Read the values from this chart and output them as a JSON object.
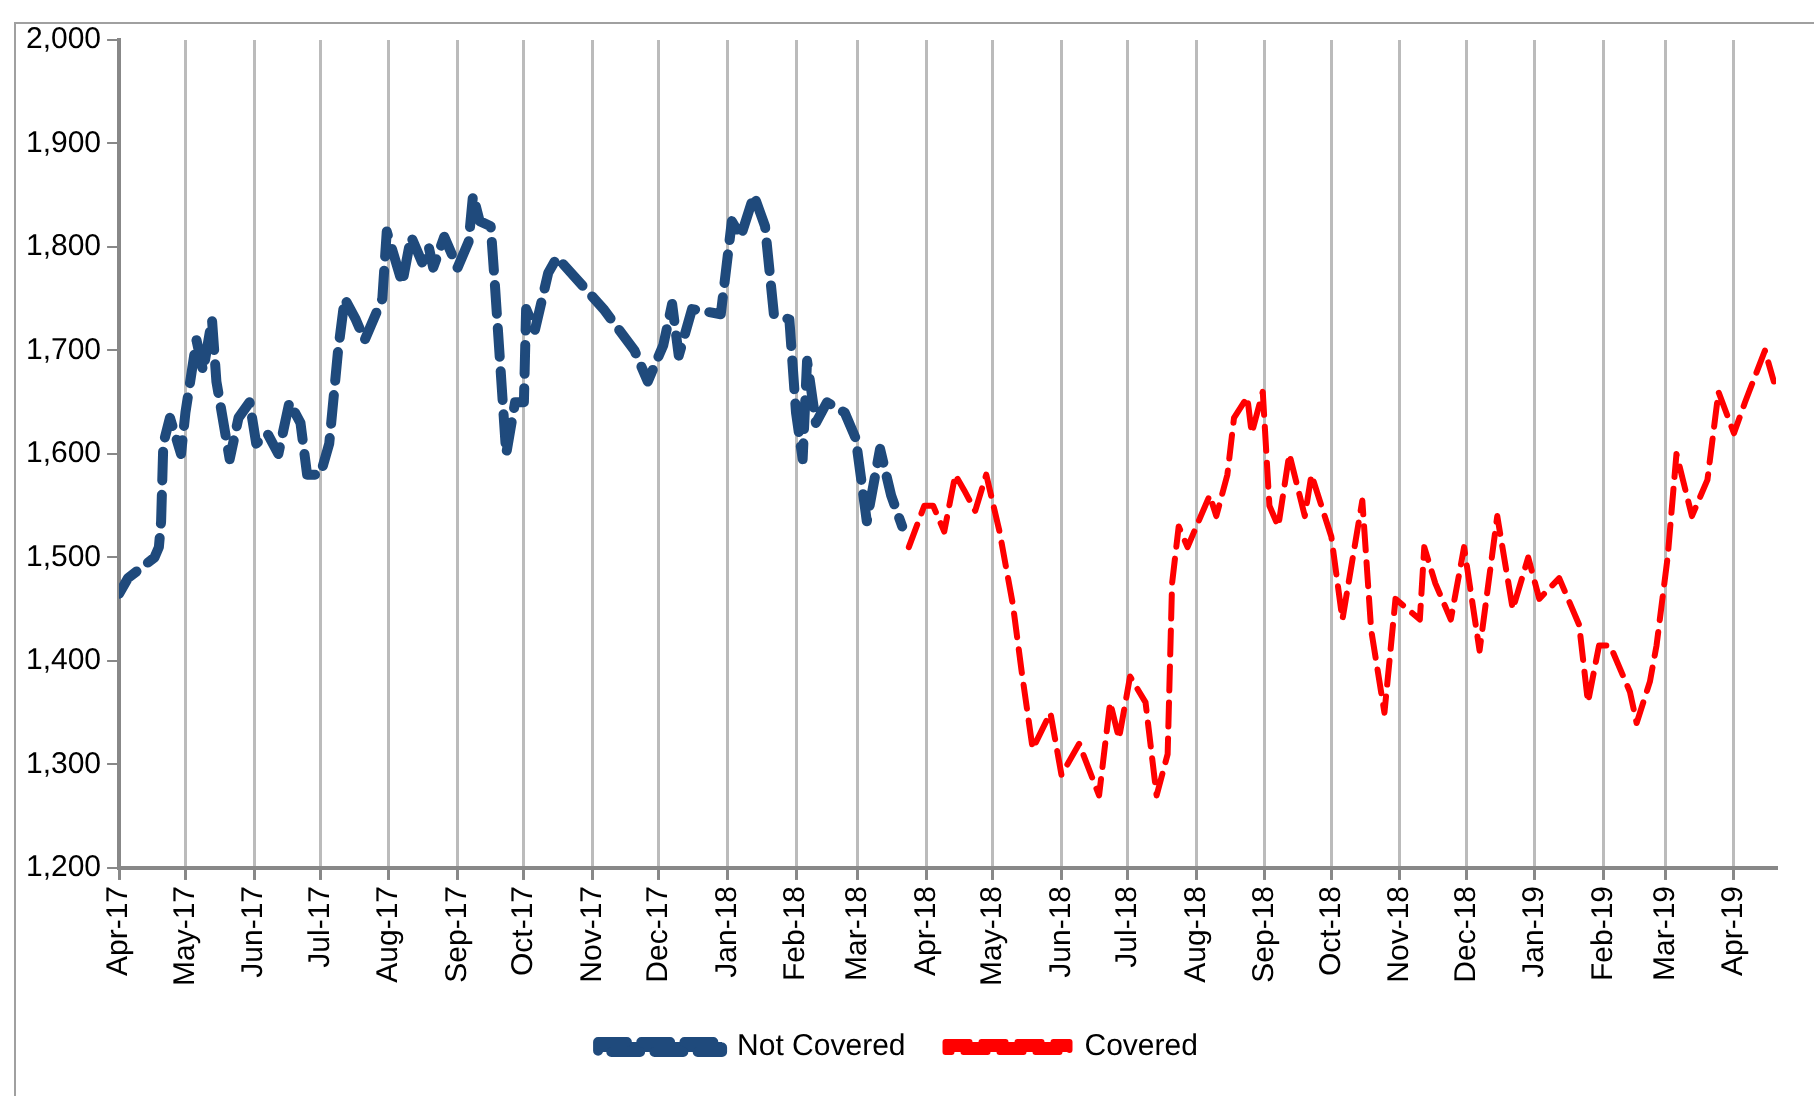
{
  "chart_data": {
    "type": "line",
    "xlim": [
      "2017-04-01",
      "2019-04-20"
    ],
    "xticks": [
      {
        "value": "2017-04-01",
        "label": "Apr-17"
      },
      {
        "value": "2017-05-01",
        "label": "May-17"
      },
      {
        "value": "2017-06-01",
        "label": "Jun-17"
      },
      {
        "value": "2017-07-01",
        "label": "Jul-17"
      },
      {
        "value": "2017-08-01",
        "label": "Aug-17"
      },
      {
        "value": "2017-09-01",
        "label": "Sep-17"
      },
      {
        "value": "2017-10-01",
        "label": "Oct-17"
      },
      {
        "value": "2017-11-01",
        "label": "Nov-17"
      },
      {
        "value": "2017-12-01",
        "label": "Dec-17"
      },
      {
        "value": "2018-01-01",
        "label": "Jan-18"
      },
      {
        "value": "2018-02-01",
        "label": "Feb-18"
      },
      {
        "value": "2018-03-01",
        "label": "Mar-18"
      },
      {
        "value": "2018-04-01",
        "label": "Apr-18"
      },
      {
        "value": "2018-05-01",
        "label": "May-18"
      },
      {
        "value": "2018-06-01",
        "label": "Jun-18"
      },
      {
        "value": "2018-07-01",
        "label": "Jul-18"
      },
      {
        "value": "2018-08-01",
        "label": "Aug-18"
      },
      {
        "value": "2018-09-01",
        "label": "Sep-18"
      },
      {
        "value": "2018-10-01",
        "label": "Oct-18"
      },
      {
        "value": "2018-11-01",
        "label": "Nov-18"
      },
      {
        "value": "2018-12-01",
        "label": "Dec-18"
      },
      {
        "value": "2019-01-01",
        "label": "Jan-19"
      },
      {
        "value": "2019-02-01",
        "label": "Feb-19"
      },
      {
        "value": "2019-03-01",
        "label": "Mar-19"
      },
      {
        "value": "2019-04-01",
        "label": "Apr-19"
      }
    ],
    "ylim": [
      1200,
      2000
    ],
    "yticks": [
      {
        "value": 1200,
        "label": "1,200"
      },
      {
        "value": 1300,
        "label": "1,300"
      },
      {
        "value": 1400,
        "label": "1,400"
      },
      {
        "value": 1500,
        "label": "1,500"
      },
      {
        "value": 1600,
        "label": "1,600"
      },
      {
        "value": 1700,
        "label": "1,700"
      },
      {
        "value": 1800,
        "label": "1,800"
      },
      {
        "value": 1900,
        "label": "1,900"
      },
      {
        "value": 2000,
        "label": "2,000"
      }
    ],
    "grid": "x",
    "legend": "bottom",
    "line_style": "dashed",
    "marker": "none",
    "series": [
      {
        "name": "Not Covered",
        "color": "#1f4a7c",
        "x": [
          "2017-04-01",
          "2017-04-05",
          "2017-04-17",
          "2017-04-19",
          "2017-04-20",
          "2017-04-21",
          "2017-04-24",
          "2017-04-29",
          "2017-05-01",
          "2017-05-06",
          "2017-05-09",
          "2017-05-13",
          "2017-05-15",
          "2017-05-21",
          "2017-05-25",
          "2017-05-30",
          "2017-06-02",
          "2017-06-07",
          "2017-06-12",
          "2017-06-17",
          "2017-06-22",
          "2017-06-25",
          "2017-07-01",
          "2017-07-05",
          "2017-07-09",
          "2017-07-12",
          "2017-07-17",
          "2017-07-21",
          "2017-07-25",
          "2017-07-29",
          "2017-07-31",
          "2017-08-07",
          "2017-08-11",
          "2017-08-16",
          "2017-08-19",
          "2017-08-21",
          "2017-08-26",
          "2017-09-01",
          "2017-09-06",
          "2017-09-08",
          "2017-09-11",
          "2017-09-16",
          "2017-09-18",
          "2017-09-23",
          "2017-09-27",
          "2017-10-01",
          "2017-10-02",
          "2017-10-06",
          "2017-10-12",
          "2017-10-16",
          "2017-11-06",
          "2017-11-20",
          "2017-11-26",
          "2017-12-03",
          "2017-12-07",
          "2017-12-10",
          "2017-12-16",
          "2017-12-29",
          "2018-01-03",
          "2018-01-07",
          "2018-01-13",
          "2018-01-18",
          "2018-01-22",
          "2018-01-29",
          "2018-02-01",
          "2018-02-04",
          "2018-02-06",
          "2018-02-10",
          "2018-02-15",
          "2018-02-23",
          "2018-02-28",
          "2018-03-05",
          "2018-03-11",
          "2018-03-16",
          "2018-03-21"
        ],
        "values": [
          1465,
          1480,
          1500,
          1510,
          1535,
          1610,
          1635,
          1600,
          1640,
          1710,
          1680,
          1730,
          1670,
          1595,
          1635,
          1650,
          1610,
          1620,
          1600,
          1650,
          1630,
          1580,
          1580,
          1610,
          1700,
          1750,
          1730,
          1710,
          1730,
          1750,
          1815,
          1765,
          1810,
          1785,
          1800,
          1780,
          1810,
          1780,
          1805,
          1850,
          1825,
          1820,
          1760,
          1600,
          1650,
          1650,
          1740,
          1720,
          1775,
          1790,
          1740,
          1700,
          1670,
          1705,
          1745,
          1695,
          1740,
          1735,
          1825,
          1810,
          1850,
          1820,
          1735,
          1730,
          1640,
          1595,
          1690,
          1630,
          1650,
          1640,
          1615,
          1535,
          1605,
          1560,
          1530
        ]
      },
      {
        "name": "Covered",
        "color": "#ff0000",
        "x": [
          "2018-03-24",
          "2018-03-31",
          "2018-04-04",
          "2018-04-09",
          "2018-04-14",
          "2018-04-18",
          "2018-04-23",
          "2018-04-28",
          "2018-05-04",
          "2018-05-07",
          "2018-05-10",
          "2018-05-14",
          "2018-05-19",
          "2018-05-27",
          "2018-06-01",
          "2018-06-09",
          "2018-06-18",
          "2018-06-23",
          "2018-06-27",
          "2018-07-02",
          "2018-07-09",
          "2018-07-14",
          "2018-07-19",
          "2018-07-21",
          "2018-07-24",
          "2018-07-28",
          "2018-08-07",
          "2018-08-10",
          "2018-08-15",
          "2018-08-18",
          "2018-08-24",
          "2018-08-26",
          "2018-08-31",
          "2018-09-03",
          "2018-09-07",
          "2018-09-12",
          "2018-09-19",
          "2018-09-22",
          "2018-10-01",
          "2018-10-06",
          "2018-10-15",
          "2018-10-19",
          "2018-10-25",
          "2018-10-30",
          "2018-11-10",
          "2018-11-12",
          "2018-11-17",
          "2018-11-24",
          "2018-11-30",
          "2018-12-07",
          "2018-12-15",
          "2018-12-22",
          "2018-12-29",
          "2019-01-03",
          "2019-01-12",
          "2019-01-21",
          "2019-01-25",
          "2019-01-30",
          "2019-02-04",
          "2019-02-13",
          "2019-02-16",
          "2019-02-22",
          "2019-02-25",
          "2019-03-02",
          "2019-03-06",
          "2019-03-13",
          "2019-03-20",
          "2019-03-25",
          "2019-04-01",
          "2019-04-06",
          "2019-04-15",
          "2019-04-19"
        ],
        "values": [
          1510,
          1550,
          1550,
          1525,
          1580,
          1565,
          1545,
          1580,
          1525,
          1490,
          1455,
          1390,
          1315,
          1350,
          1290,
          1320,
          1270,
          1360,
          1325,
          1385,
          1360,
          1270,
          1310,
          1475,
          1530,
          1510,
          1560,
          1540,
          1580,
          1635,
          1655,
          1620,
          1660,
          1550,
          1530,
          1600,
          1540,
          1580,
          1520,
          1440,
          1555,
          1430,
          1350,
          1460,
          1440,
          1510,
          1475,
          1440,
          1510,
          1410,
          1540,
          1450,
          1500,
          1460,
          1480,
          1435,
          1360,
          1415,
          1415,
          1370,
          1340,
          1380,
          1415,
          1500,
          1600,
          1540,
          1575,
          1660,
          1620,
          1650,
          1700,
          1670
        ]
      }
    ]
  }
}
